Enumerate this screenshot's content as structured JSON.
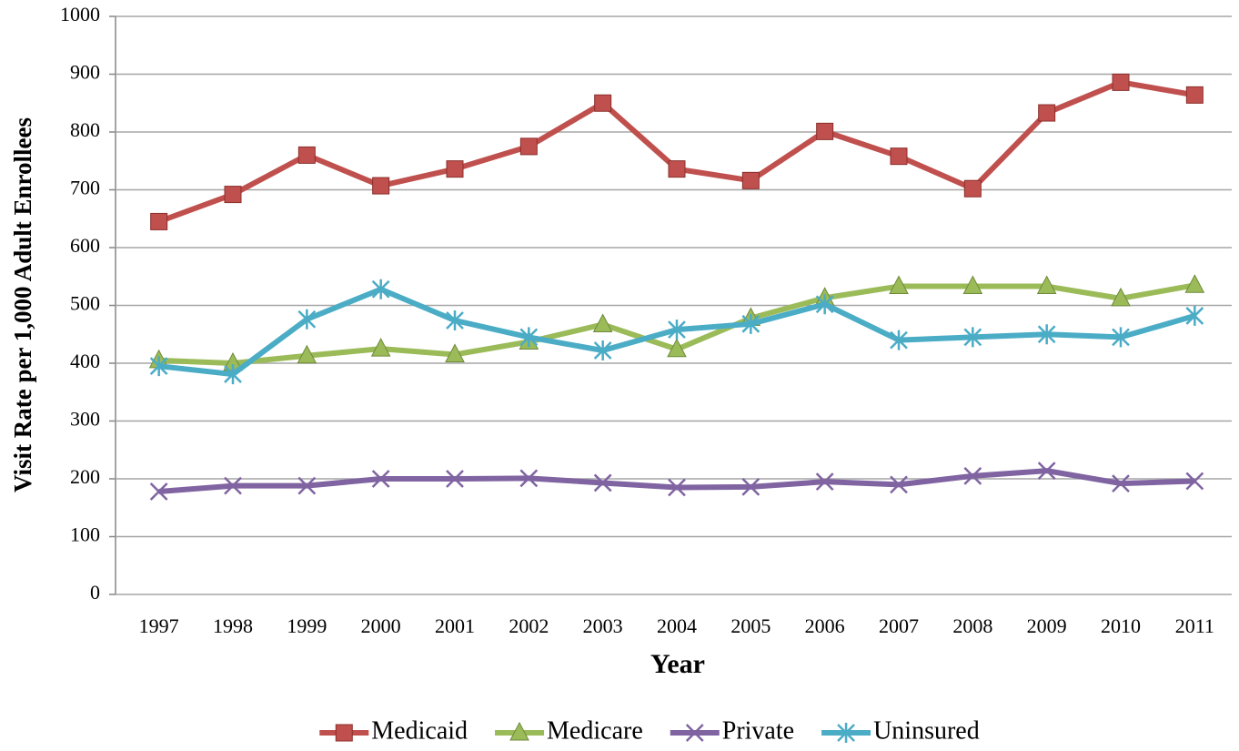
{
  "chart_data": {
    "type": "line",
    "x_label": "Year",
    "y_label": "Visit Rate per 1,000 Adult Enrollees",
    "categories": [
      "1997",
      "1998",
      "1999",
      "2000",
      "2001",
      "2002",
      "2003",
      "2004",
      "2005",
      "2006",
      "2007",
      "2008",
      "2009",
      "2010",
      "2011"
    ],
    "series": [
      {
        "name": "Medicaid",
        "color": "#c0504d",
        "marker": "square",
        "values": [
          645,
          692,
          760,
          707,
          736,
          775,
          850,
          736,
          716,
          801,
          758,
          702,
          833,
          886,
          864
        ]
      },
      {
        "name": "Medicare",
        "color": "#9bbb59",
        "marker": "triangle",
        "values": [
          405,
          400,
          413,
          425,
          415,
          437,
          467,
          424,
          478,
          513,
          533,
          533,
          533,
          512,
          535
        ]
      },
      {
        "name": "Private",
        "color": "#8064a2",
        "marker": "x",
        "values": [
          178,
          188,
          188,
          200,
          200,
          201,
          193,
          185,
          186,
          195,
          190,
          205,
          214,
          192,
          196
        ]
      },
      {
        "name": "Uninsured",
        "color": "#4bacc6",
        "marker": "asterisk",
        "values": [
          395,
          381,
          476,
          528,
          474,
          445,
          422,
          458,
          468,
          502,
          440,
          445,
          450,
          445,
          482
        ]
      }
    ],
    "ylim": [
      0,
      1000
    ],
    "yticks": [
      0,
      100,
      200,
      300,
      400,
      500,
      600,
      700,
      800,
      900,
      1000
    ],
    "grid": true,
    "legend": "bottom"
  }
}
